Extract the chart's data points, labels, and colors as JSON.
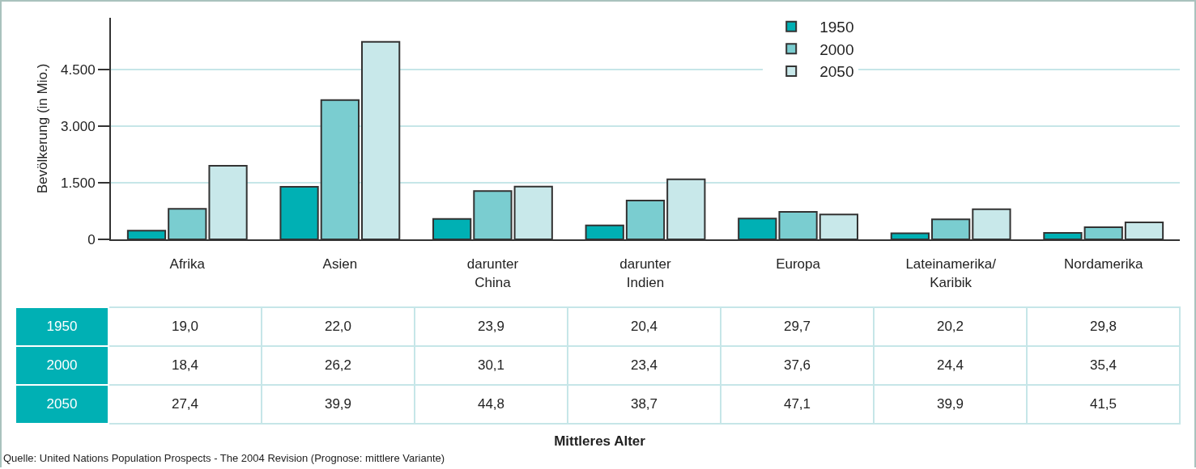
{
  "chart_data": [
    {
      "type": "bar",
      "ylabel": "Bevölkerung (in Mio.)",
      "categories": [
        "Afrika",
        "Asien",
        "darunter\nChina",
        "darunter\nIndien",
        "Europa",
        "Lateinamerika/\nKaribik",
        "Nordamerika"
      ],
      "series": [
        {
          "name": "1950",
          "color": "#00b0b4",
          "values": [
            230,
            1390,
            540,
            370,
            550,
            160,
            170
          ]
        },
        {
          "name": "2000",
          "color": "#7acdd0",
          "values": [
            810,
            3690,
            1280,
            1030,
            730,
            530,
            320
          ]
        },
        {
          "name": "2050",
          "color": "#c8e8ea",
          "values": [
            1950,
            5230,
            1400,
            1590,
            660,
            800,
            450
          ]
        }
      ],
      "ylim": [
        0,
        5870
      ],
      "yticks": [
        0,
        {
          "value": 1500,
          "label": "1.500"
        },
        {
          "value": 3000,
          "label": "3.000"
        },
        {
          "value": 4500,
          "label": "4.500"
        }
      ],
      "grid": "y",
      "legend": "top right"
    },
    {
      "type": "other",
      "xlabel": "Mittleres Alter",
      "y_categories": [
        "1950",
        "2000",
        "2050"
      ],
      "cell_labels": [
        [
          "19,0",
          "22,0",
          "23,9",
          "20,4",
          "29,7",
          "20,2",
          "29,8"
        ],
        [
          "18,4",
          "26,2",
          "30,1",
          "23,4",
          "37,6",
          "24,4",
          "35,4"
        ],
        [
          "27,4",
          "39,9",
          "44,8",
          "38,7",
          "47,1",
          "39,9",
          "41,5"
        ]
      ],
      "annotations": [
        "Quelle: United Nations Population Prospects - The 2004 Revision (Prognose: mittlere Variante)"
      ]
    }
  ]
}
